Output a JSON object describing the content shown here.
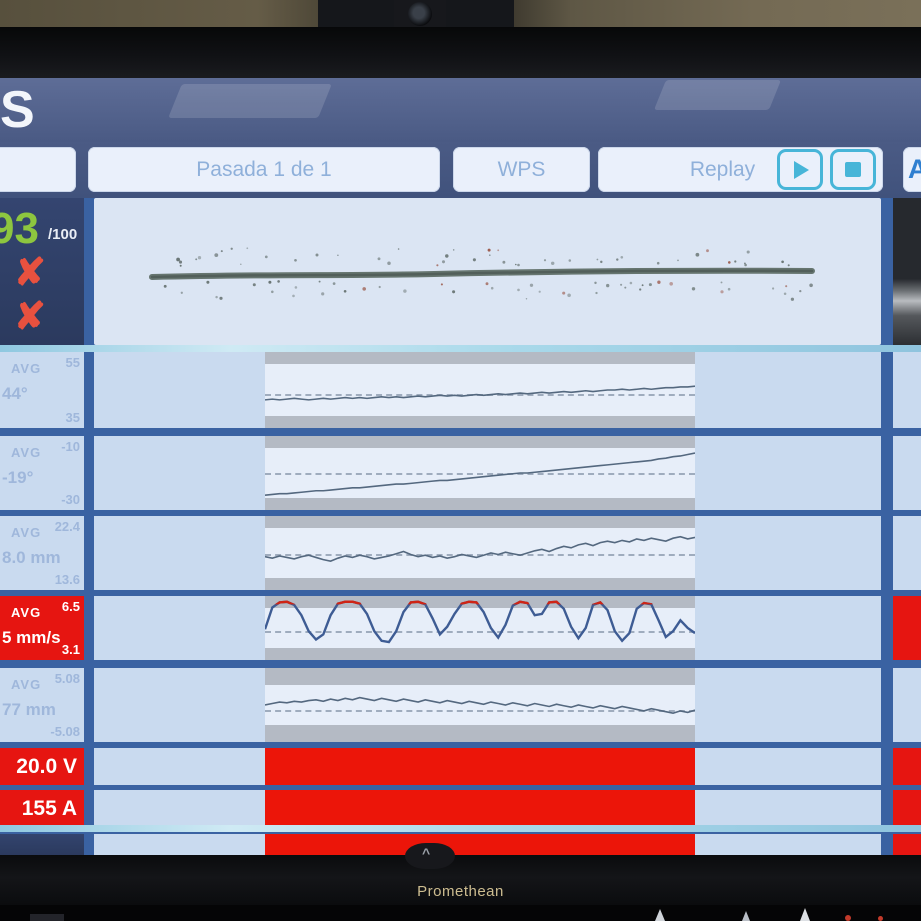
{
  "meta": {
    "brand": "Promethean",
    "logo_fragment": "S"
  },
  "toolbar": {
    "pass_label": "Pasada 1 de 1",
    "wps_label": "WPS",
    "replay_label": "Replay",
    "right_fragment": "A"
  },
  "score": {
    "value": "93",
    "total": "/100",
    "fail_mark": "✘"
  },
  "rows": [
    {
      "avg_label": "AVG",
      "value": "44°",
      "max": "55",
      "min": "35",
      "alert": false
    },
    {
      "avg_label": "AVG",
      "value": "-19°",
      "max": "-10",
      "min": "-30",
      "alert": false
    },
    {
      "avg_label": "AVG",
      "value": "8.0 mm",
      "max": "22.4",
      "min": "13.6",
      "alert": false
    },
    {
      "avg_label": "AVG",
      "value": "5 mm/s",
      "max": "6.5",
      "min": "3.1",
      "alert": true
    },
    {
      "avg_label": "AVG",
      "value": "77 mm",
      "max": "5.08",
      "min": "-5.08",
      "alert": false
    }
  ],
  "bottom_rows": [
    {
      "label": "20.0 V"
    },
    {
      "label": "155 A"
    }
  ],
  "colors": {
    "alert_red": "#e61511",
    "score_green": "#8dc63f",
    "wave_stroke": "#54687f",
    "speed_stroke": "#3e5c94",
    "speed_over_stroke": "#cf2415",
    "accent_teal": "#47b5d8"
  },
  "chart_data": [
    {
      "type": "line",
      "name": "work-angle-trace",
      "target": 55,
      "points": [
        63,
        62,
        63,
        62,
        61,
        62,
        63,
        62,
        61,
        62,
        61,
        60,
        61,
        60,
        61,
        60,
        59,
        60,
        59,
        60,
        59,
        58,
        59,
        58,
        57,
        58,
        57,
        58,
        57,
        56,
        57,
        56,
        55,
        56,
        55,
        54,
        55,
        54,
        53,
        54,
        53,
        52,
        53,
        52,
        51,
        52,
        51,
        50,
        50,
        49,
        50,
        49,
        48,
        49,
        48,
        47,
        47,
        46,
        46,
        45
      ]
    },
    {
      "type": "line",
      "name": "travel-angle-trace",
      "target": 50,
      "points": [
        80,
        79,
        78,
        78,
        77,
        76,
        75,
        74,
        74,
        73,
        72,
        71,
        70,
        70,
        69,
        68,
        67,
        66,
        65,
        65,
        64,
        63,
        62,
        61,
        60,
        60,
        59,
        58,
        57,
        56,
        55,
        54,
        53,
        52,
        51,
        50,
        50,
        49,
        48,
        47,
        46,
        45,
        44,
        43,
        42,
        41,
        40,
        39,
        38,
        37,
        36,
        35,
        34,
        33,
        31,
        30,
        28,
        27,
        25,
        23
      ]
    },
    {
      "type": "line",
      "name": "stickout-trace",
      "target": 52,
      "points": [
        55,
        57,
        54,
        56,
        58,
        55,
        53,
        56,
        59,
        61,
        57,
        54,
        56,
        53,
        55,
        58,
        56,
        54,
        51,
        48,
        52,
        55,
        53,
        56,
        54,
        57,
        55,
        52,
        54,
        56,
        53,
        50,
        52,
        49,
        51,
        53,
        50,
        47,
        45,
        48,
        44,
        41,
        43,
        39,
        37,
        40,
        36,
        34,
        36,
        33,
        35,
        31,
        33,
        30,
        32,
        34,
        30,
        28,
        31,
        29
      ]
    },
    {
      "type": "line",
      "name": "speed-trace",
      "target": 55,
      "over_limit": 13,
      "points": [
        52,
        18,
        10,
        9,
        14,
        30,
        55,
        68,
        60,
        30,
        12,
        9,
        9,
        12,
        28,
        55,
        70,
        72,
        55,
        25,
        10,
        9,
        13,
        35,
        60,
        48,
        28,
        12,
        9,
        10,
        25,
        50,
        65,
        45,
        15,
        9,
        11,
        30,
        28,
        10,
        9,
        20,
        48,
        66,
        50,
        14,
        10,
        22,
        55,
        70,
        58,
        20,
        11,
        13,
        38,
        64,
        55,
        38,
        50,
        58
      ]
    },
    {
      "type": "line",
      "name": "alignment-trace",
      "target": 57,
      "points": [
        50,
        48,
        46,
        47,
        45,
        46,
        44,
        43,
        45,
        42,
        44,
        41,
        43,
        40,
        42,
        44,
        41,
        43,
        45,
        42,
        44,
        46,
        43,
        45,
        47,
        44,
        46,
        48,
        45,
        47,
        49,
        46,
        48,
        50,
        47,
        49,
        51,
        48,
        50,
        52,
        49,
        51,
        53,
        50,
        52,
        54,
        51,
        53,
        55,
        52,
        54,
        56,
        58,
        55,
        57,
        59,
        61,
        58,
        60,
        57
      ]
    }
  ]
}
